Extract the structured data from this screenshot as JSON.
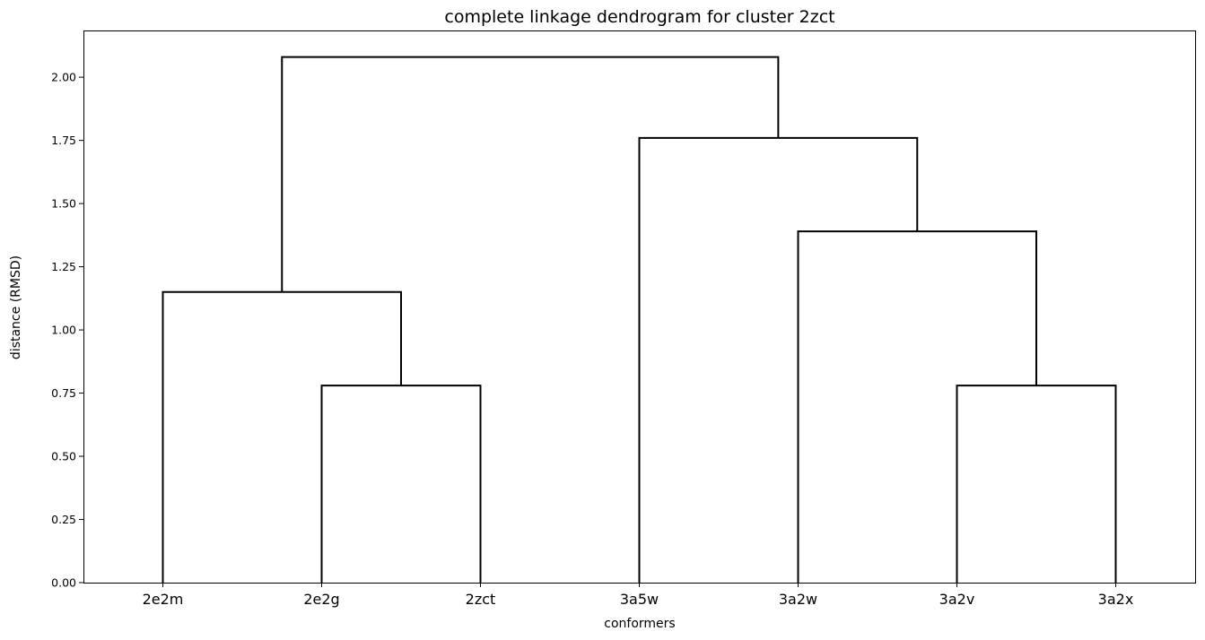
{
  "chart_data": {
    "type": "dendrogram",
    "title": "complete linkage dendrogram for cluster 2zct",
    "xlabel": "conformers",
    "ylabel": "distance (RMSD)",
    "leaves": [
      "2e2m",
      "2e2g",
      "2zct",
      "3a5w",
      "3a2w",
      "3a2v",
      "3a2x"
    ],
    "ylim": [
      0,
      2.185
    ],
    "yticks": [
      {
        "value": 0.0,
        "label": "0.00"
      },
      {
        "value": 0.25,
        "label": "0.25"
      },
      {
        "value": 0.5,
        "label": "0.50"
      },
      {
        "value": 0.75,
        "label": "0.75"
      },
      {
        "value": 1.0,
        "label": "1.00"
      },
      {
        "value": 1.25,
        "label": "1.25"
      },
      {
        "value": 1.5,
        "label": "1.50"
      },
      {
        "value": 1.75,
        "label": "1.75"
      },
      {
        "value": 2.0,
        "label": "2.00"
      }
    ],
    "merges": [
      {
        "a": "2e2g",
        "b": "2zct",
        "height": 0.78
      },
      {
        "a": "3a2v",
        "b": "3a2x",
        "height": 0.78
      },
      {
        "a": "2e2m",
        "b": "2e2g+2zct",
        "height": 1.15
      },
      {
        "a": "3a2w",
        "b": "3a2v+3a2x",
        "height": 1.39
      },
      {
        "a": "3a5w",
        "b": "3a2w+3a2v+3a2x",
        "height": 1.76
      },
      {
        "a": "2e2m+2e2g+2zct",
        "b": "3a5w+3a2w+3a2v+3a2x",
        "height": 2.08
      }
    ],
    "grid": false,
    "line_color": "#000000"
  }
}
